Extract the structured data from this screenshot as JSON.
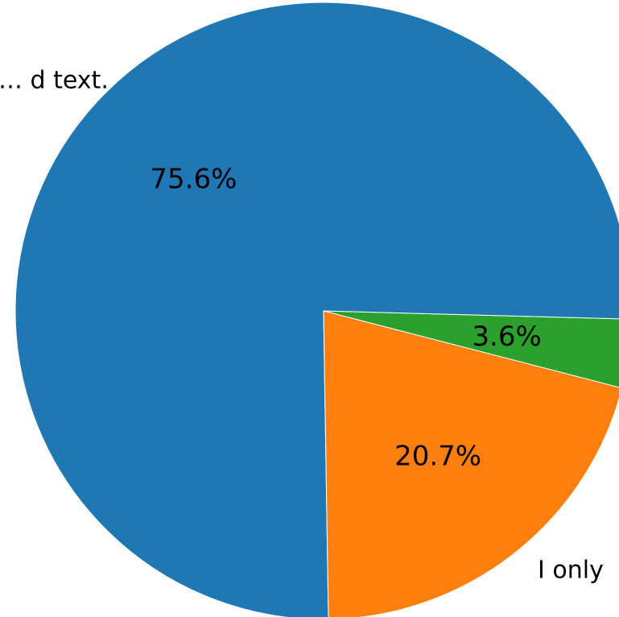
{
  "chart_data": {
    "type": "pie",
    "title": "",
    "slices": [
      {
        "label": "",
        "pct_label": "3.6%",
        "value": 3.6,
        "color": "#2ca02c"
      },
      {
        "label": "… d text.",
        "pct_label": "75.6%",
        "value": 75.6,
        "color": "#1f77b4"
      },
      {
        "label": "I only",
        "pct_label": "20.7%",
        "value": 20.7,
        "color": "#ff7f0e"
      }
    ],
    "legend": "none",
    "grid": false
  }
}
